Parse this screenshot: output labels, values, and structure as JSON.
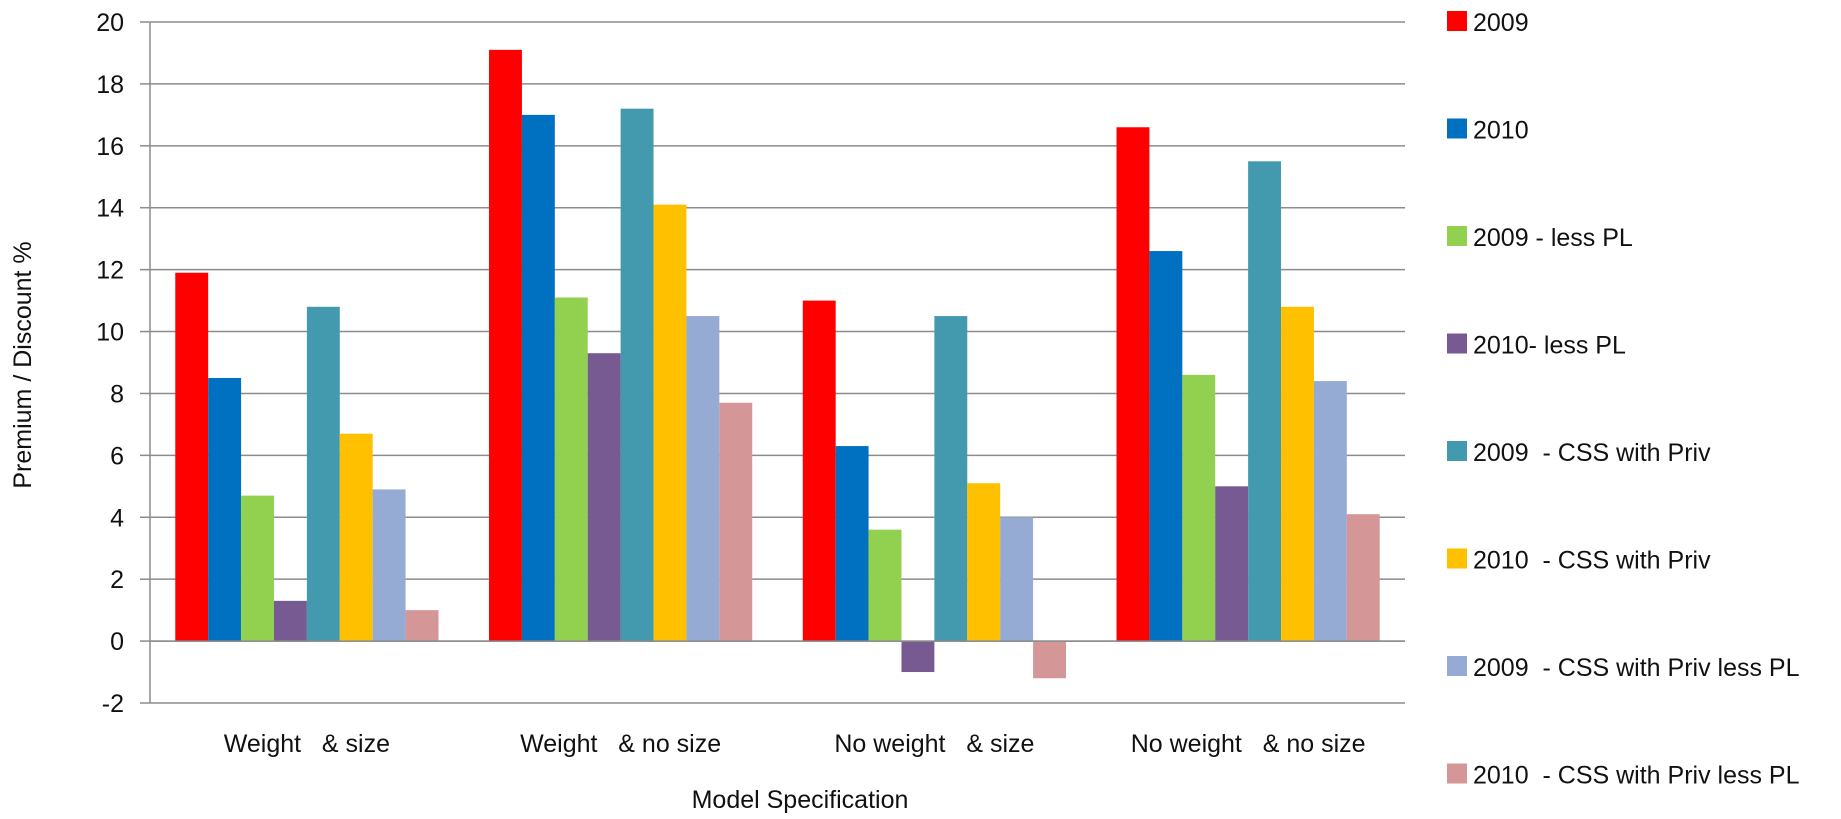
{
  "chart_data": {
    "type": "bar",
    "xlabel": "Model Specification",
    "ylabel": "Premium / Discount %",
    "categories": [
      "Weight   & size",
      "Weight   & no size",
      "No weight   & size",
      "No weight   & no size"
    ],
    "ylim": [
      -2,
      20
    ],
    "yticks": [
      -2,
      0,
      2,
      4,
      6,
      8,
      10,
      12,
      14,
      16,
      18,
      20
    ],
    "grid": true,
    "legend_position": "right",
    "series": [
      {
        "name": "2009",
        "color": "#ff0000",
        "values": [
          11.9,
          19.1,
          11.0,
          16.6
        ]
      },
      {
        "name": "2010",
        "color": "#0070c0",
        "values": [
          8.5,
          17.0,
          6.3,
          12.6
        ]
      },
      {
        "name": "2009 - less PL",
        "color": "#92d050",
        "values": [
          4.7,
          11.1,
          3.6,
          8.6
        ]
      },
      {
        "name": "2010- less PL",
        "color": "#775a91",
        "values": [
          1.3,
          9.3,
          -1.0,
          5.0
        ]
      },
      {
        "name": "2009  - CSS with Priv",
        "color": "#4399ae",
        "values": [
          10.8,
          17.2,
          10.5,
          15.5
        ]
      },
      {
        "name": "2010  - CSS with Priv",
        "color": "#ffc000",
        "values": [
          6.7,
          14.1,
          5.1,
          10.8
        ]
      },
      {
        "name": "2009  - CSS with Priv less PL",
        "color": "#95abd3",
        "values": [
          4.9,
          10.5,
          4.0,
          8.4
        ]
      },
      {
        "name": "2010  - CSS with Priv less PL",
        "color": "#d49696",
        "values": [
          1.0,
          7.7,
          -1.2,
          4.1
        ]
      }
    ]
  }
}
